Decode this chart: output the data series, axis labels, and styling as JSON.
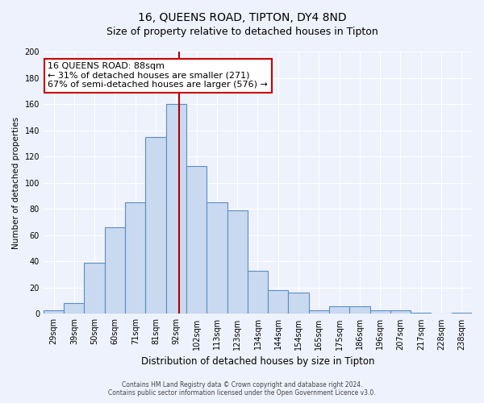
{
  "title": "16, QUEENS ROAD, TIPTON, DY4 8ND",
  "subtitle": "Size of property relative to detached houses in Tipton",
  "xlabel": "Distribution of detached houses by size in Tipton",
  "ylabel": "Number of detached properties",
  "bar_labels": [
    "29sqm",
    "39sqm",
    "50sqm",
    "60sqm",
    "71sqm",
    "81sqm",
    "92sqm",
    "102sqm",
    "113sqm",
    "123sqm",
    "134sqm",
    "144sqm",
    "154sqm",
    "165sqm",
    "175sqm",
    "186sqm",
    "196sqm",
    "207sqm",
    "217sqm",
    "228sqm",
    "238sqm"
  ],
  "bar_values": [
    3,
    8,
    39,
    66,
    85,
    135,
    160,
    113,
    85,
    79,
    33,
    18,
    16,
    3,
    6,
    6,
    3,
    3,
    1,
    0,
    1
  ],
  "bar_color": "#c9d9f0",
  "bar_edge_color": "#5b8ec4",
  "annotation_text": "16 QUEENS ROAD: 88sqm\n← 31% of detached houses are smaller (271)\n67% of semi-detached houses are larger (576) →",
  "annotation_box_color": "white",
  "annotation_box_edge_color": "#cc0000",
  "vline_color": "#aa0000",
  "ylim": [
    0,
    200
  ],
  "yticks": [
    0,
    20,
    40,
    60,
    80,
    100,
    120,
    140,
    160,
    180,
    200
  ],
  "footer_line1": "Contains HM Land Registry data © Crown copyright and database right 2024.",
  "footer_line2": "Contains public sector information licensed under the Open Government Licence v3.0.",
  "bg_color": "#eef2fc",
  "plot_bg_color": "#eef2fc",
  "grid_color": "#ffffff",
  "title_fontsize": 10,
  "subtitle_fontsize": 9,
  "xlabel_fontsize": 8.5,
  "ylabel_fontsize": 7.5,
  "tick_fontsize": 7,
  "annotation_fontsize": 8,
  "footer_fontsize": 5.5
}
